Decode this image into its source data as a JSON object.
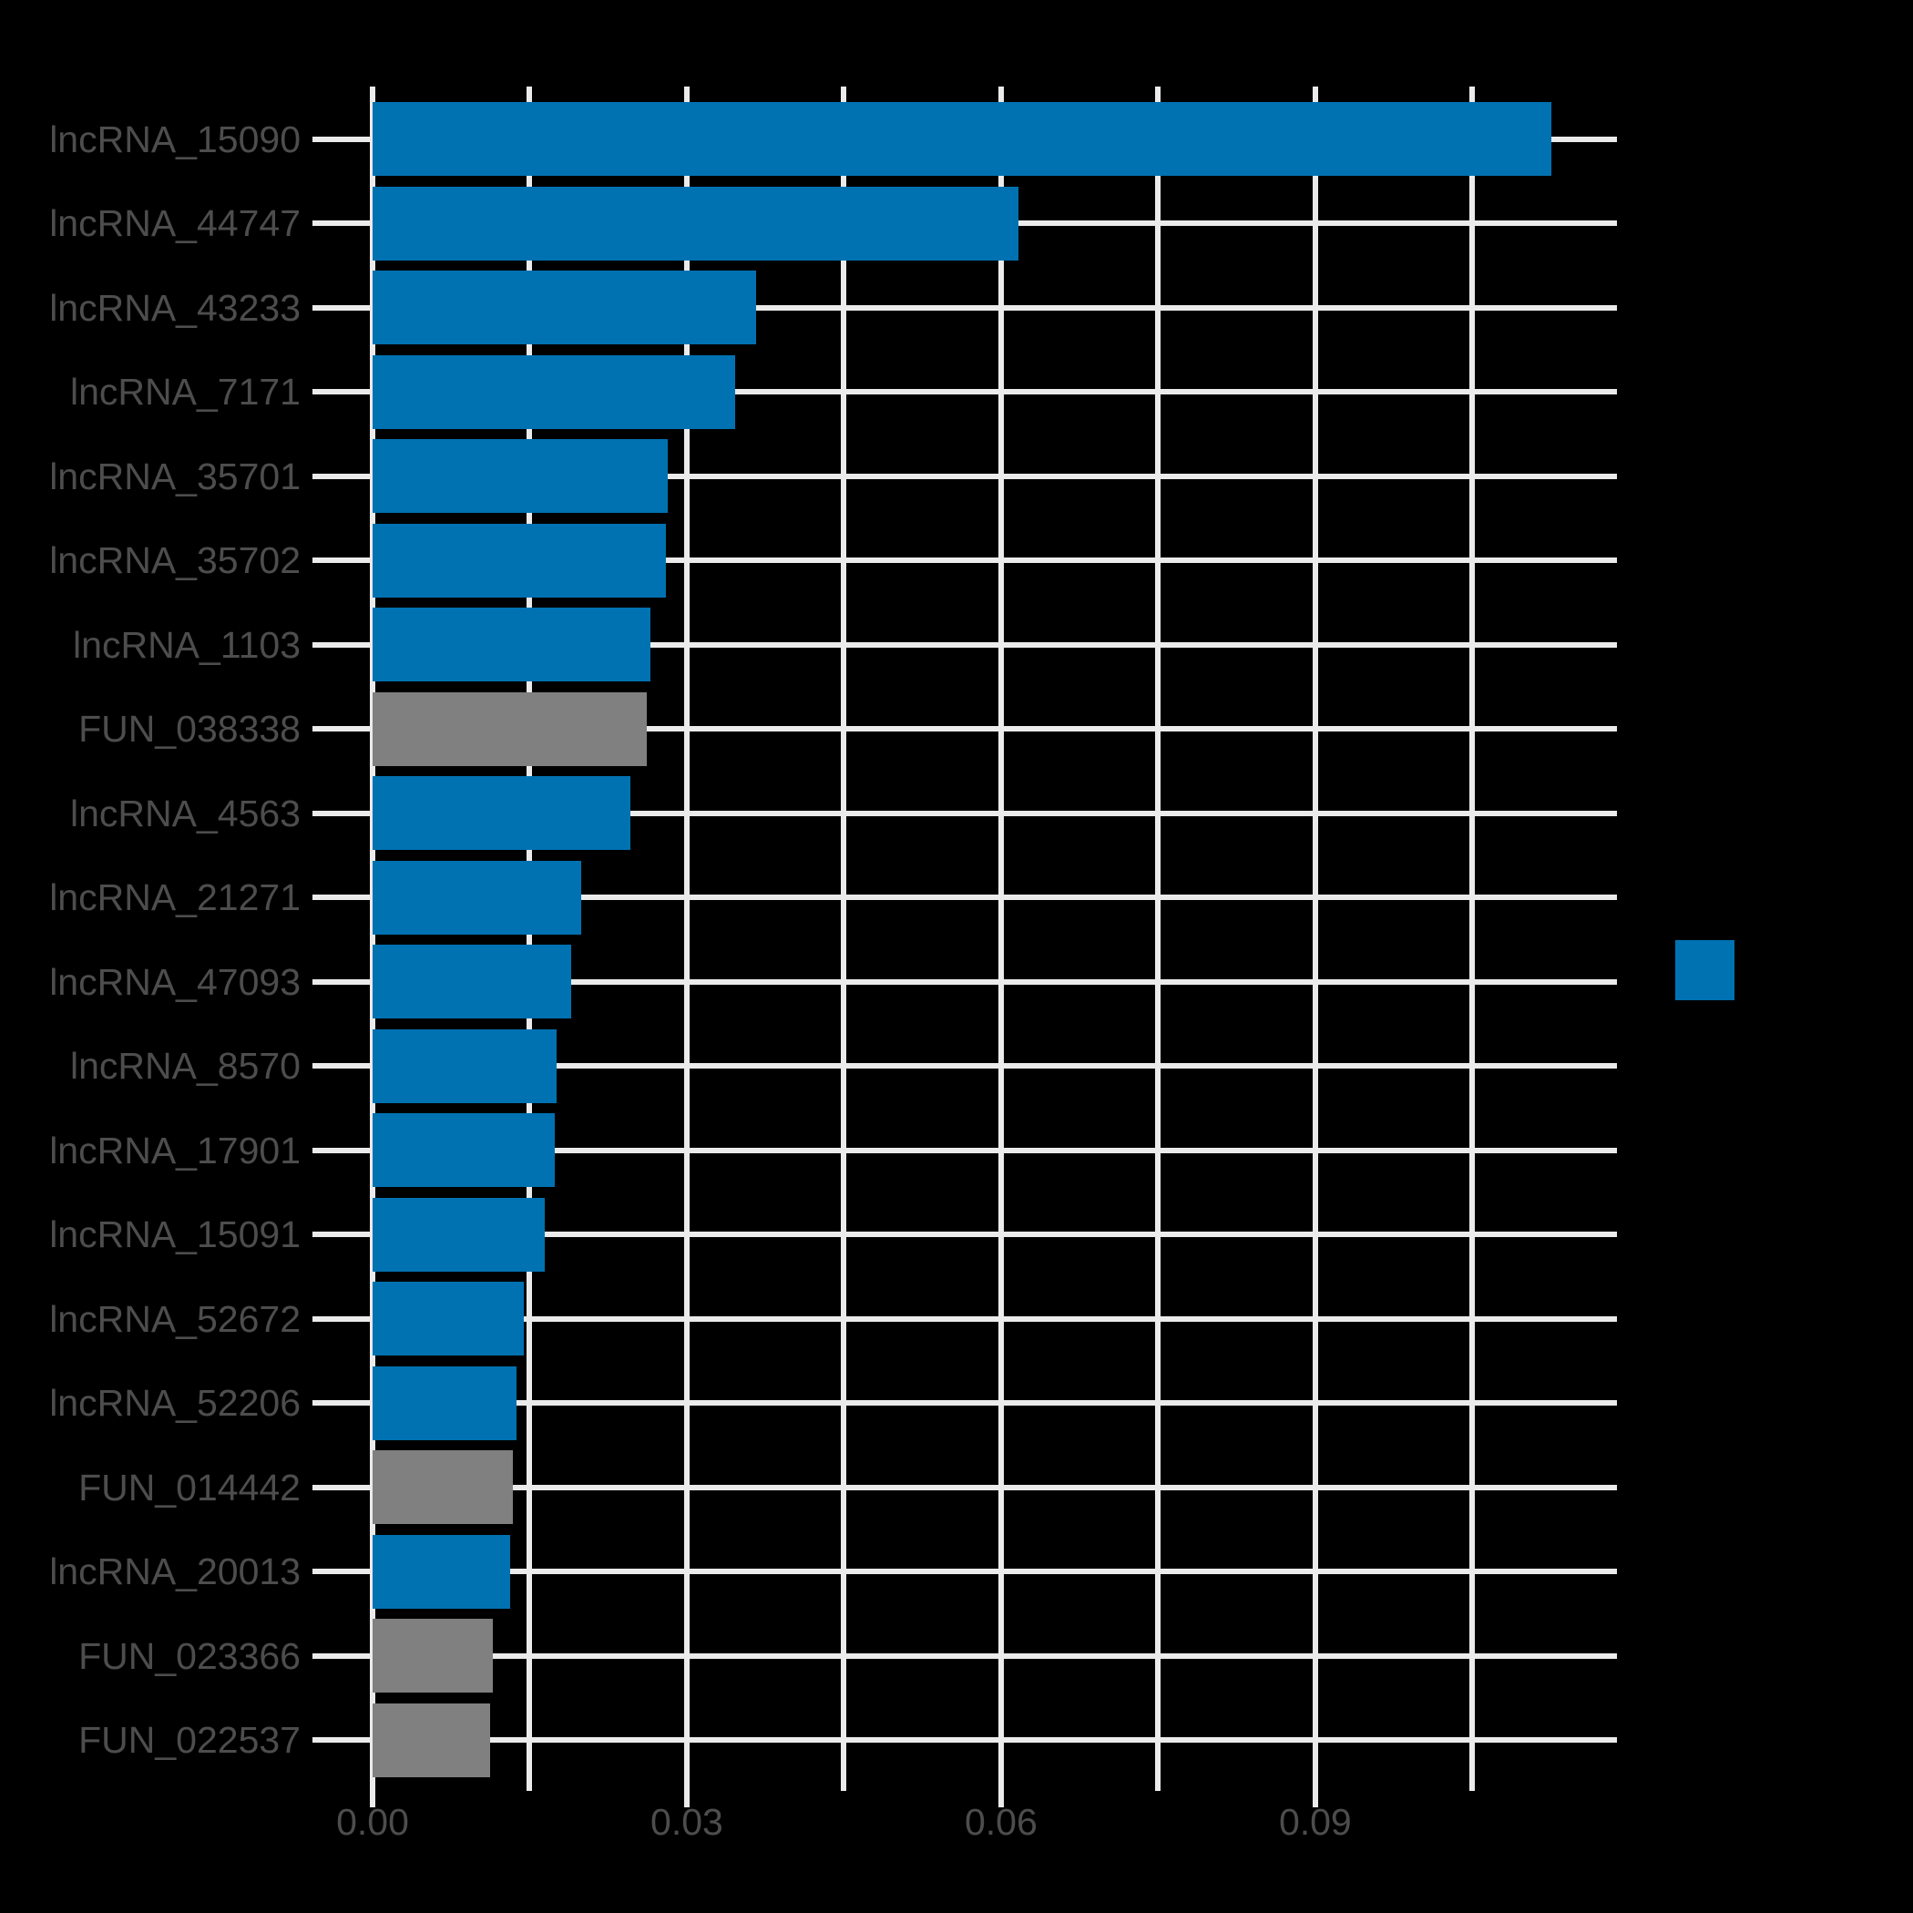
{
  "chart_data": {
    "type": "bar",
    "orientation": "horizontal",
    "title": "",
    "xlabel": "",
    "ylabel": "",
    "categories": [
      "lncRNA_15090",
      "lncRNA_44747",
      "lncRNA_43233",
      "lncRNA_7171",
      "lncRNA_35701",
      "lncRNA_35702",
      "lncRNA_1103",
      "FUN_038338",
      "lncRNA_4563",
      "lncRNA_21271",
      "lncRNA_47093",
      "lncRNA_8570",
      "lncRNA_17901",
      "lncRNA_15091",
      "lncRNA_52672",
      "lncRNA_52206",
      "FUN_014442",
      "lncRNA_20013",
      "FUN_023366",
      "FUN_022537"
    ],
    "values": [
      0.1125,
      0.0617,
      0.0366,
      0.0346,
      0.0282,
      0.028,
      0.0265,
      0.0262,
      0.0246,
      0.0199,
      0.019,
      0.0176,
      0.0174,
      0.0164,
      0.0144,
      0.0137,
      0.0134,
      0.0131,
      0.0115,
      0.0112
    ],
    "bar_colors": [
      "#0072B2",
      "#0072B2",
      "#0072B2",
      "#0072B2",
      "#0072B2",
      "#0072B2",
      "#0072B2",
      "#808080",
      "#0072B2",
      "#0072B2",
      "#0072B2",
      "#0072B2",
      "#0072B2",
      "#0072B2",
      "#0072B2",
      "#0072B2",
      "#808080",
      "#0072B2",
      "#808080",
      "#808080"
    ],
    "group_colors": {
      "lncRNA": "#0072B2",
      "FUN": "#808080"
    },
    "x_ticks": {
      "labels": [
        "0.00",
        "0.03",
        "0.06",
        "0.09"
      ],
      "values": [
        0,
        0.03,
        0.06,
        0.09
      ]
    },
    "x_minor_break_step": 0.015,
    "xlim": [
      0,
      0.1188
    ],
    "grid": "both",
    "legend": {
      "position": "right",
      "swatch_color": "#0072B2",
      "label": ""
    },
    "colors": {
      "background": "#000000",
      "grid": "#ebebeb",
      "tick": "#ebebeb",
      "text": "#4d4d4d"
    }
  }
}
